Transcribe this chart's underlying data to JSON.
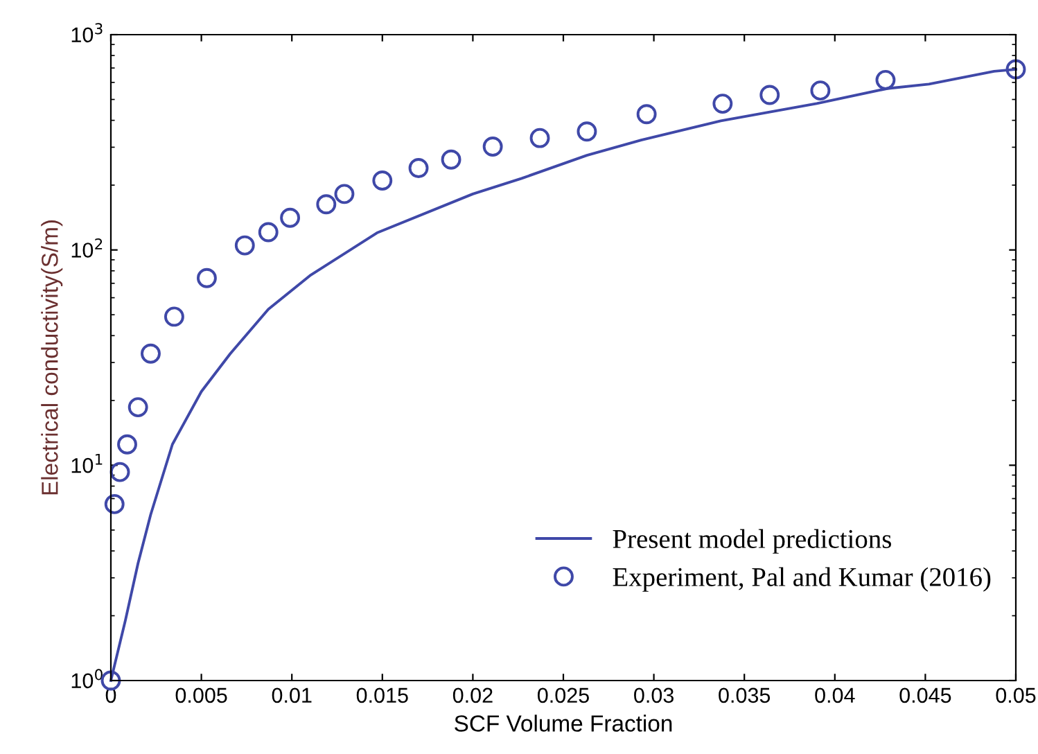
{
  "chart_data": {
    "type": "line",
    "xlabel": "SCF Volume Fraction",
    "ylabel": "Electrical conductivity(S/m)",
    "log": "y",
    "xlim": [
      0,
      0.05
    ],
    "ylim": [
      1,
      1000
    ],
    "xticks": [
      0,
      0.005,
      0.01,
      0.015,
      0.02,
      0.025,
      0.03,
      0.035,
      0.04,
      0.045,
      0.05
    ],
    "yticks": [
      {
        "value": 1,
        "label": "10$^{0}$"
      },
      {
        "value": 10,
        "label": "10$^{1}$"
      },
      {
        "value": 100,
        "label": "10$^{2}$"
      },
      {
        "value": 1000,
        "label": "10$^{3}$"
      }
    ],
    "legend": "lower right",
    "grid": false,
    "series": [
      {
        "name": "Present model predictions",
        "color": "#3f48a8",
        "marker": "none",
        "line_style": "solid",
        "x": [
          0,
          0.0008,
          0.0015,
          0.0022,
          0.0034,
          0.005,
          0.0066,
          0.0087,
          0.011,
          0.0147,
          0.02,
          0.0227,
          0.0263,
          0.0293,
          0.0337,
          0.039,
          0.0429,
          0.0452,
          0.0488,
          0.05
        ],
        "values": [
          1,
          1.9,
          3.5,
          5.9,
          12.5,
          22,
          33,
          53,
          76,
          120,
          182,
          215,
          275,
          324,
          398,
          479,
          562,
          589,
          676,
          690
        ]
      },
      {
        "name": "Experiment, Pal and Kumar (2016)",
        "type": "scatter",
        "color": "#3f48a8",
        "marker": "circle",
        "x": [
          0,
          0.0002,
          0.0005,
          0.0009,
          0.0015,
          0.0022,
          0.0035,
          0.0053,
          0.0074,
          0.0087,
          0.0099,
          0.0119,
          0.0129,
          0.015,
          0.017,
          0.0188,
          0.0211,
          0.0237,
          0.0263,
          0.0296,
          0.0338,
          0.0364,
          0.0392,
          0.0428,
          0.05
        ],
        "values": [
          1,
          6.6,
          9.3,
          12.5,
          18.6,
          33,
          49,
          74,
          105,
          121,
          141,
          163,
          182,
          210,
          240,
          263,
          302,
          331,
          355,
          427,
          478,
          525,
          550,
          616,
          690
        ]
      }
    ]
  }
}
